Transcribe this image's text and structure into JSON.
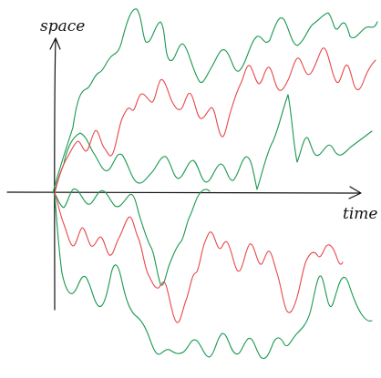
{
  "diagram": {
    "axes": {
      "y_label": "space",
      "x_label": "time"
    },
    "colors": {
      "axis": "#111111",
      "green": "#1a9850",
      "red": "#e8474a"
    },
    "paths": [
      {
        "id": "green-upper",
        "color": "green"
      },
      {
        "id": "green-middle",
        "color": "green"
      },
      {
        "id": "green-center",
        "color": "green"
      },
      {
        "id": "green-lower",
        "color": "green"
      },
      {
        "id": "red-upper",
        "color": "red"
      },
      {
        "id": "red-lower",
        "color": "red"
      }
    ]
  }
}
